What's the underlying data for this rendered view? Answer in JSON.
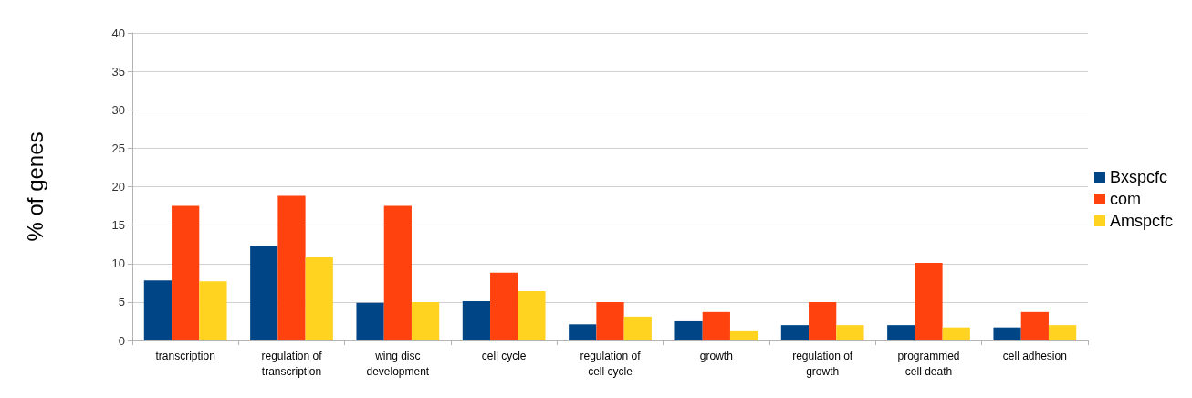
{
  "chart_data": {
    "type": "bar",
    "ylabel": "% of genes",
    "categories": [
      "transcription",
      "regulation of\ntranscription",
      "wing disc\ndevelopment",
      "cell cycle",
      "regulation of\ncell cycle",
      "growth",
      "regulation of\ngrowth",
      "programmed\ncell death",
      "cell adhesion"
    ],
    "series": [
      {
        "name": "Bxspcfc",
        "color": "#004586",
        "values": [
          7.8,
          12.3,
          4.9,
          5.1,
          2.1,
          2.5,
          2.0,
          2.0,
          1.7
        ]
      },
      {
        "name": "com",
        "color": "#ff420e",
        "values": [
          17.5,
          18.8,
          17.5,
          8.8,
          5.0,
          3.7,
          5.0,
          10.1,
          3.7
        ]
      },
      {
        "name": "Amspcfc",
        "color": "#ffd320",
        "values": [
          7.7,
          10.8,
          5.0,
          6.4,
          3.1,
          1.2,
          2.0,
          1.7,
          2.0
        ]
      }
    ],
    "ylim": [
      0,
      40
    ],
    "yticks": [
      0,
      5,
      10,
      15,
      20,
      25,
      30,
      35,
      40
    ],
    "grid": "y",
    "legend": "right"
  }
}
